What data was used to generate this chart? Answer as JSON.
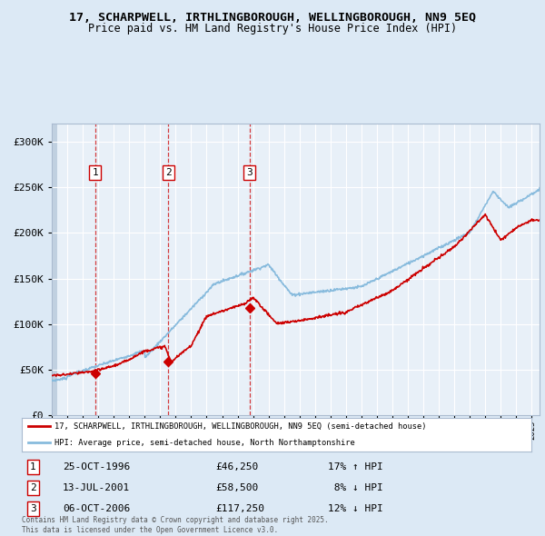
{
  "title_line1": "17, SCHARPWELL, IRTHLINGBOROUGH, WELLINGBOROUGH, NN9 5EQ",
  "title_line2": "Price paid vs. HM Land Registry's House Price Index (HPI)",
  "legend_red": "17, SCHARPWELL, IRTHLINGBOROUGH, WELLINGBOROUGH, NN9 5EQ (semi-detached house)",
  "legend_blue": "HPI: Average price, semi-detached house, North Northamptonshire",
  "transactions": [
    {
      "label": "1",
      "date": "25-OCT-1996",
      "price": 46250,
      "pct": "17%",
      "dir": "↑",
      "year": 1996.81
    },
    {
      "label": "2",
      "date": "13-JUL-2001",
      "price": 58500,
      "pct": "8%",
      "dir": "↓",
      "year": 2001.53
    },
    {
      "label": "3",
      "date": "06-OCT-2006",
      "price": 117250,
      "pct": "12%",
      "dir": "↓",
      "year": 2006.77
    }
  ],
  "footnote": "Contains HM Land Registry data © Crown copyright and database right 2025.\nThis data is licensed under the Open Government Licence v3.0.",
  "bg_color": "#dce9f5",
  "plot_bg": "#e8f0f8",
  "hatch_color": "#c0d0e0",
  "red_color": "#cc0000",
  "blue_color": "#88bbdd",
  "ylim": [
    0,
    320000
  ],
  "yticks": [
    0,
    50000,
    100000,
    150000,
    200000,
    250000,
    300000
  ],
  "xstart": 1994.0,
  "xend": 2025.5,
  "table_rows": [
    [
      "1",
      "25-OCT-1996",
      "£46,250",
      "17% ↑ HPI"
    ],
    [
      "2",
      "13-JUL-2001",
      "£58,500",
      " 8% ↓ HPI"
    ],
    [
      "3",
      "06-OCT-2006",
      "£117,250",
      "12% ↓ HPI"
    ]
  ]
}
